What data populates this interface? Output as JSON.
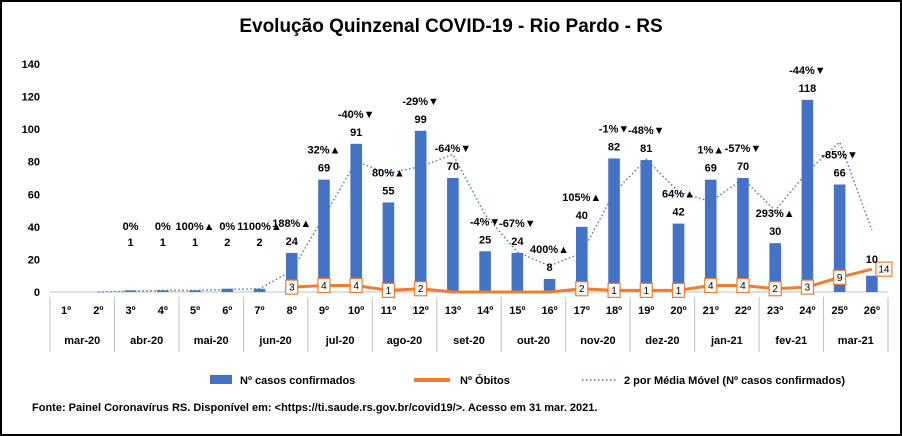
{
  "chart_data": {
    "type": "bar",
    "title": "Evolução Quinzenal COVID-19 - Rio Pardo - RS",
    "categories": [
      "1º",
      "2º",
      "3º",
      "4º",
      "5º",
      "6º",
      "7º",
      "8º",
      "9º",
      "10º",
      "11º",
      "12º",
      "13º",
      "14º",
      "15º",
      "16º",
      "17º",
      "18º",
      "19º",
      "20º",
      "21º",
      "22º",
      "23º",
      "24º",
      "25º",
      "26º"
    ],
    "groups": [
      {
        "label": "mar-20",
        "span": 2
      },
      {
        "label": "abr-20",
        "span": 2
      },
      {
        "label": "mai-20",
        "span": 2
      },
      {
        "label": "jun-20",
        "span": 2
      },
      {
        "label": "jul-20",
        "span": 2
      },
      {
        "label": "ago-20",
        "span": 2
      },
      {
        "label": "set-20",
        "span": 2
      },
      {
        "label": "out-20",
        "span": 2
      },
      {
        "label": "nov-20",
        "span": 2
      },
      {
        "label": "dez-20",
        "span": 2
      },
      {
        "label": "jan-21",
        "span": 2
      },
      {
        "label": "fev-21",
        "span": 2
      },
      {
        "label": "mar-21",
        "span": 2
      }
    ],
    "ylim": [
      0,
      140
    ],
    "yticks": [
      "0",
      "20",
      "40",
      "60",
      "80",
      "100",
      "120",
      "140"
    ],
    "series": [
      {
        "name": "Nº casos confirmados",
        "kind": "bar",
        "color": "#4472C4",
        "values": [
          0,
          0,
          1,
          1,
          1,
          2,
          2,
          24,
          69,
          91,
          55,
          99,
          70,
          25,
          24,
          8,
          40,
          82,
          81,
          42,
          69,
          70,
          30,
          118,
          66,
          10
        ],
        "labels": [
          "",
          "",
          "1",
          "1",
          "1",
          "2",
          "2",
          "24",
          "69",
          "91",
          "55",
          "99",
          "70",
          "25",
          "24",
          "8",
          "40",
          "82",
          "81",
          "42",
          "69",
          "70",
          "30",
          "118",
          "66",
          "10"
        ]
      },
      {
        "name": "Nº Óbitos",
        "kind": "line",
        "color": "#ED7D31",
        "values": [
          0,
          0,
          0,
          0,
          0,
          0,
          0,
          3,
          4,
          4,
          1,
          2,
          0,
          0,
          0,
          0,
          2,
          1,
          1,
          1,
          4,
          4,
          2,
          3,
          9,
          14
        ],
        "labels": [
          "",
          "",
          "",
          "",
          "",
          "",
          "",
          "3",
          "4",
          "4",
          "1",
          "2",
          "",
          "",
          "",
          "",
          "2",
          "1",
          "1",
          "1",
          "4",
          "4",
          "2",
          "3",
          "9",
          "14"
        ]
      },
      {
        "name": "2 por Média Móvel (Nº casos confirmados)",
        "kind": "moving-average",
        "color": "#4472C4",
        "values": [
          null,
          0,
          0.5,
          1,
          1,
          1.5,
          2,
          13,
          46.5,
          80,
          73,
          77,
          84.5,
          47.5,
          24.5,
          16,
          24,
          61,
          81.5,
          61.5,
          55.5,
          69.5,
          50,
          74,
          92,
          38
        ]
      }
    ],
    "pct_labels": [
      "",
      "",
      "0%",
      "0%",
      "100%▲",
      "0%",
      "1100%▲",
      "188%▲",
      "32%▲",
      "-40%▼",
      "80%▲",
      "-29%▼",
      "-64%▼",
      "-4%▼",
      "-67%▼",
      "400%▲",
      "105%▲",
      "-1%▼",
      "-48%▼",
      "64%▲",
      "1%▲",
      "-57%▼",
      "293%▲",
      "-44%▼",
      "-85%▼",
      ""
    ],
    "legend_position": "bottom",
    "source": "Fonte: Painel Coronavírus RS. Disponível em: <https://ti.saude.rs.gov.br/covid19/>. Acesso em 31 mar. 2021.",
    "grid": false
  }
}
